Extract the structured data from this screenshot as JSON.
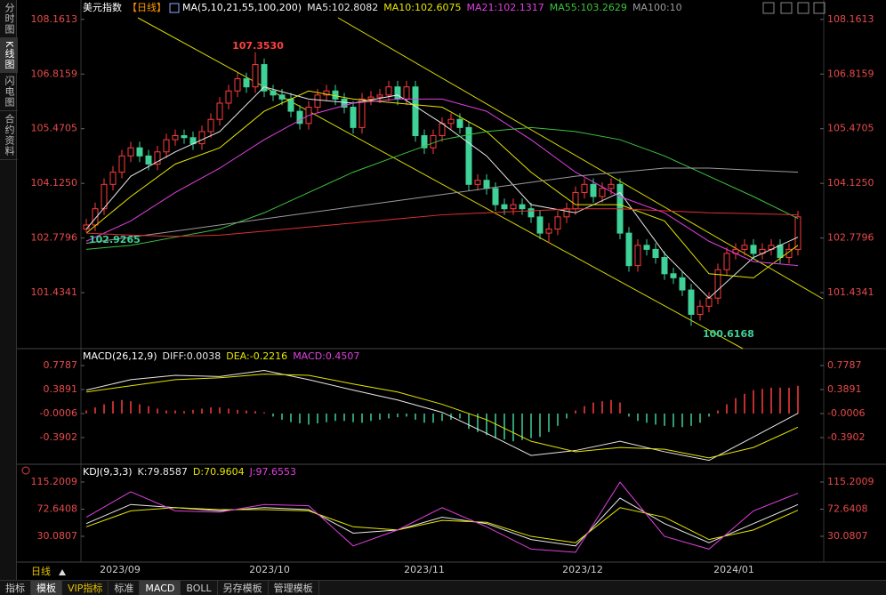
{
  "sidebar": [
    "分时图",
    "K线图",
    "闪电图",
    "合约资料"
  ],
  "toolbar": [
    "指标",
    "模板",
    "VIP指标",
    "标准",
    "MACD",
    "BOLL",
    "另存模板",
    "管理模板"
  ],
  "period_label": "日线",
  "dates": [
    "2023/09",
    "2023/10",
    "2023/11",
    "2023/12",
    "2024/01"
  ],
  "chart_data": [
    {
      "type": "candlestick",
      "title": "美元指数",
      "period": "【日线】",
      "indicator": "MA(5,10,21,55,100,200)",
      "up_color": "#ff3c3c",
      "down_color": "#3fd197",
      "ylim": [
        100.1,
        108.42
      ],
      "yticks": [
        108.1613,
        106.8159,
        105.4705,
        {
          "value": 104.125,
          "label": "104.1250"
        },
        102.7796,
        101.4341
      ],
      "candles": [
        [
          103.0,
          103.25,
          102.9265,
          103.1
        ],
        [
          103.1,
          103.65,
          102.95,
          103.5
        ],
        [
          103.5,
          104.25,
          103.35,
          104.1
        ],
        [
          104.1,
          104.55,
          103.95,
          104.4
        ],
        [
          104.4,
          104.95,
          104.25,
          104.8
        ],
        [
          104.8,
          105.15,
          104.65,
          105.0
        ],
        [
          105.0,
          105.15,
          104.65,
          104.8
        ],
        [
          104.8,
          104.95,
          104.45,
          104.6
        ],
        [
          104.6,
          105.05,
          104.45,
          104.9
        ],
        [
          104.9,
          105.35,
          104.75,
          105.2
        ],
        [
          105.2,
          105.45,
          105.05,
          105.3
        ],
        [
          105.3,
          105.45,
          105.1,
          105.25
        ],
        [
          105.25,
          105.4,
          104.95,
          105.1
        ],
        [
          105.1,
          105.55,
          104.95,
          105.4
        ],
        [
          105.4,
          105.85,
          105.25,
          105.7
        ],
        [
          105.7,
          106.25,
          105.55,
          106.1
        ],
        [
          106.1,
          106.55,
          105.95,
          106.4
        ],
        [
          106.4,
          106.85,
          106.25,
          106.7
        ],
        [
          106.7,
          106.85,
          106.35,
          106.5
        ],
        [
          106.5,
          107.353,
          106.35,
          107.05
        ],
        [
          107.05,
          107.2,
          106.25,
          106.4
        ],
        [
          106.4,
          106.55,
          106.15,
          106.3
        ],
        [
          106.3,
          106.45,
          106.05,
          106.2
        ],
        [
          106.2,
          106.35,
          105.75,
          105.9
        ],
        [
          105.9,
          106.05,
          105.45,
          105.6
        ],
        [
          105.6,
          106.15,
          105.45,
          106.0
        ],
        [
          106.0,
          106.45,
          105.85,
          106.3
        ],
        [
          106.3,
          106.55,
          106.15,
          106.4
        ],
        [
          106.4,
          106.55,
          106.05,
          106.2
        ],
        [
          106.2,
          106.35,
          105.85,
          106.0
        ],
        [
          106.0,
          106.15,
          105.35,
          105.5
        ],
        [
          105.5,
          106.35,
          105.35,
          106.2
        ],
        [
          106.2,
          106.4,
          106.05,
          106.25
        ],
        [
          106.25,
          106.45,
          106.1,
          106.3
        ],
        [
          106.3,
          106.65,
          106.15,
          106.5
        ],
        [
          106.5,
          106.65,
          106.05,
          106.2
        ],
        [
          106.2,
          106.65,
          106.05,
          106.5
        ],
        [
          106.5,
          106.65,
          105.15,
          105.3
        ],
        [
          105.3,
          105.45,
          104.85,
          105.0
        ],
        [
          105.0,
          105.45,
          104.85,
          105.3
        ],
        [
          105.3,
          105.75,
          105.15,
          105.6
        ],
        [
          105.6,
          105.85,
          105.45,
          105.7
        ],
        [
          105.7,
          105.85,
          105.35,
          105.5
        ],
        [
          105.5,
          105.65,
          103.95,
          104.1
        ],
        [
          104.1,
          104.35,
          103.95,
          104.2
        ],
        [
          104.2,
          104.35,
          103.85,
          104.0
        ],
        [
          104.0,
          104.15,
          103.45,
          103.6
        ],
        [
          103.6,
          103.75,
          103.35,
          103.5
        ],
        [
          103.5,
          103.75,
          103.35,
          103.6
        ],
        [
          103.6,
          103.75,
          103.35,
          103.5
        ],
        [
          103.5,
          103.65,
          103.15,
          103.3
        ],
        [
          103.3,
          103.45,
          102.75,
          102.9
        ],
        [
          102.9,
          103.15,
          102.65,
          103.0
        ],
        [
          103.0,
          103.45,
          102.85,
          103.3
        ],
        [
          103.3,
          103.65,
          103.15,
          103.5
        ],
        [
          103.5,
          104.05,
          103.35,
          103.9
        ],
        [
          103.9,
          104.25,
          103.75,
          104.1
        ],
        [
          104.1,
          104.25,
          103.65,
          103.8
        ],
        [
          103.8,
          104.15,
          103.65,
          104.0
        ],
        [
          104.0,
          104.25,
          103.85,
          104.1
        ],
        [
          104.1,
          104.25,
          102.75,
          102.9
        ],
        [
          102.9,
          103.05,
          101.95,
          102.1
        ],
        [
          102.1,
          102.75,
          101.95,
          102.6
        ],
        [
          102.6,
          102.75,
          102.35,
          102.5
        ],
        [
          102.5,
          102.65,
          102.15,
          102.3
        ],
        [
          102.3,
          102.45,
          101.75,
          101.9
        ],
        [
          101.9,
          102.05,
          101.65,
          101.8
        ],
        [
          101.8,
          101.95,
          101.35,
          101.5
        ],
        [
          101.5,
          101.65,
          100.6168,
          100.9
        ],
        [
          100.9,
          101.25,
          100.75,
          101.1
        ],
        [
          101.1,
          101.45,
          100.95,
          101.3
        ],
        [
          101.3,
          102.15,
          101.15,
          102.0
        ],
        [
          102.0,
          102.55,
          101.85,
          102.4
        ],
        [
          102.4,
          102.65,
          102.25,
          102.5
        ],
        [
          102.5,
          102.75,
          102.35,
          102.6
        ],
        [
          102.6,
          102.75,
          102.25,
          102.4
        ],
        [
          102.4,
          102.65,
          102.25,
          102.5
        ],
        [
          102.5,
          102.75,
          102.35,
          102.6
        ],
        [
          102.6,
          102.75,
          102.15,
          102.3
        ],
        [
          102.3,
          102.65,
          102.15,
          102.5
        ],
        [
          102.5,
          103.45,
          102.35,
          103.3
        ]
      ],
      "series": [
        {
          "name": "MA5:102.8082",
          "color": "#e8e8e8",
          "values": [
            103.0,
            104.3,
            104.9,
            105.4,
            106.5,
            106.2,
            106.1,
            106.3,
            105.6,
            104.8,
            103.6,
            103.4,
            103.9,
            102.4,
            101.3,
            102.3,
            102.8
          ]
        },
        {
          "name": "MA10:102.6075",
          "color": "#e6e600",
          "values": [
            102.9,
            103.8,
            104.6,
            105.0,
            105.9,
            106.4,
            106.2,
            106.1,
            106.0,
            105.4,
            104.4,
            103.6,
            103.6,
            103.2,
            101.9,
            101.8,
            102.6
          ]
        },
        {
          "name": "MA21:102.1317",
          "color": "#e040e0",
          "values": [
            102.7,
            103.2,
            103.9,
            104.5,
            105.2,
            105.8,
            106.1,
            106.2,
            106.2,
            105.9,
            105.2,
            104.4,
            103.8,
            103.4,
            102.7,
            102.2,
            102.1
          ]
        },
        {
          "name": "MA55:103.2629",
          "color": "#3cc33c",
          "values": [
            102.5,
            102.6,
            102.8,
            103.0,
            103.4,
            103.9,
            104.4,
            104.8,
            105.2,
            105.4,
            105.5,
            105.4,
            105.2,
            104.8,
            104.3,
            103.8,
            103.26
          ]
        },
        {
          "name": "MA100:10",
          "color": "#9a9a9a",
          "values": [
            102.65,
            102.8,
            102.95,
            103.1,
            103.25,
            103.4,
            103.55,
            103.7,
            103.85,
            104.0,
            104.15,
            104.3,
            104.4,
            104.5,
            104.5,
            104.45,
            104.4
          ]
        },
        {
          "color": "#e03030",
          "values": [
            102.9,
            102.85,
            102.82,
            102.85,
            102.95,
            103.05,
            103.15,
            103.25,
            103.35,
            103.4,
            103.45,
            103.5,
            103.5,
            103.45,
            103.4,
            103.38,
            103.35
          ]
        }
      ],
      "annotations": [
        {
          "text": "107.3530",
          "color": "#ff4040"
        },
        {
          "text": "102.9265",
          "color": "#3fd197"
        },
        {
          "text": "100.6168",
          "color": "#3fd197"
        }
      ]
    },
    {
      "type": "macd",
      "title": "MACD(26,12,9)",
      "histogram_label": "MACD:0.4507",
      "histogram_color": "#e040e0",
      "up_color": "#ff3c3c",
      "down_color": "#3fd197",
      "ylim": [
        -0.794,
        1.0096
      ],
      "yticks": [
        0.7787,
        0.3891,
        {
          "value": -0.0006,
          "label": "-0.0006"
        },
        -0.3902
      ],
      "histogram": [
        0.05,
        0.1,
        0.15,
        0.2,
        0.22,
        0.2,
        0.15,
        0.12,
        0.08,
        0.05,
        0.05,
        0.04,
        0.06,
        0.08,
        0.1,
        0.1,
        0.08,
        0.06,
        0.05,
        0.04,
        0.02,
        -0.05,
        -0.1,
        -0.14,
        -0.16,
        -0.18,
        -0.16,
        -0.14,
        -0.12,
        -0.12,
        -0.14,
        -0.15,
        -0.12,
        -0.1,
        -0.08,
        -0.06,
        -0.05,
        -0.1,
        -0.15,
        -0.15,
        -0.12,
        -0.1,
        -0.08,
        -0.25,
        -0.3,
        -0.35,
        -0.4,
        -0.42,
        -0.45,
        -0.43,
        -0.4,
        -0.38,
        -0.3,
        -0.2,
        -0.08,
        0.05,
        0.12,
        0.18,
        0.2,
        0.22,
        0.18,
        -0.05,
        -0.12,
        -0.15,
        -0.18,
        -0.2,
        -0.22,
        -0.22,
        -0.2,
        -0.15,
        -0.05,
        0.05,
        0.15,
        0.25,
        0.32,
        0.38,
        0.4,
        0.42,
        0.42,
        0.42,
        0.45
      ],
      "series": [
        {
          "name": "DIFF:0.0038",
          "color": "#e8e8e8",
          "values": [
            0.38,
            0.55,
            0.62,
            0.6,
            0.7,
            0.55,
            0.38,
            0.22,
            0.02,
            -0.32,
            -0.68,
            -0.6,
            -0.45,
            -0.62,
            -0.76,
            -0.38,
            0.0038
          ]
        },
        {
          "name": "DEA:-0.2216",
          "color": "#e6e600",
          "values": [
            0.35,
            0.45,
            0.55,
            0.58,
            0.64,
            0.62,
            0.48,
            0.35,
            0.15,
            -0.1,
            -0.45,
            -0.62,
            -0.55,
            -0.58,
            -0.72,
            -0.55,
            -0.2216
          ]
        }
      ]
    },
    {
      "type": "kdj",
      "title": "KDJ(9,3,3)",
      "ylim": [
        -7.6,
        138.9
      ],
      "yticks": [
        115.2009,
        72.6408,
        30.0807
      ],
      "series": [
        {
          "name": "K:79.8587",
          "color": "#e8e8e8",
          "values": [
            50,
            80,
            75,
            70,
            75,
            72,
            35,
            40,
            60,
            50,
            25,
            15,
            90,
            50,
            20,
            50,
            79.8587
          ]
        },
        {
          "name": "D:70.9604",
          "color": "#e6e600",
          "values": [
            45,
            70,
            75,
            72,
            72,
            70,
            45,
            40,
            55,
            52,
            30,
            20,
            75,
            60,
            25,
            40,
            70.9604
          ]
        },
        {
          "name": "J:97.6553",
          "color": "#e040e0",
          "values": [
            60,
            100,
            70,
            68,
            80,
            78,
            15,
            40,
            75,
            45,
            10,
            5,
            115,
            30,
            10,
            70,
            97.6553
          ]
        }
      ]
    }
  ]
}
